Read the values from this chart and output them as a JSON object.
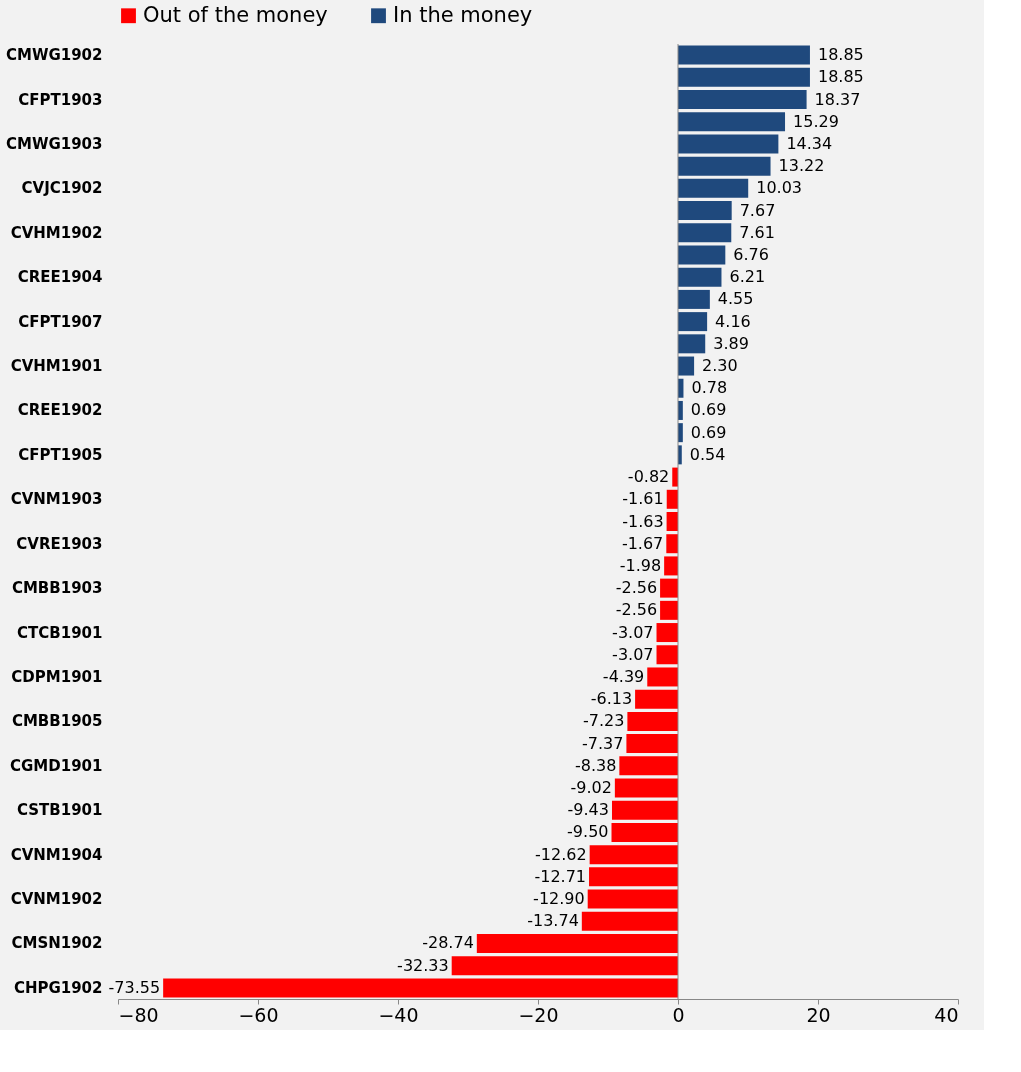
{
  "chart_data": {
    "type": "bar",
    "orientation": "horizontal",
    "categories": [
      "CMWG1902",
      null,
      "CFPT1903",
      null,
      "CMWG1903",
      null,
      "CVJC1902",
      null,
      "CVHM1902",
      null,
      "CREE1904",
      null,
      "CFPT1907",
      null,
      "CVHM1901",
      null,
      "CREE1902",
      null,
      "CFPT1905",
      null,
      "CVNM1903",
      null,
      "CVRE1903",
      null,
      "CMBB1903",
      null,
      "CTCB1901",
      null,
      "CDPM1901",
      null,
      "CMBB1905",
      null,
      "CGMD1901",
      null,
      "CSTB1901",
      null,
      "CVNM1904",
      null,
      "CVNM1902",
      null,
      "CMSN1902",
      null,
      "CHPG1902"
    ],
    "series": [
      {
        "name": "Out of the money",
        "color": "#ff0000",
        "values": [
          null,
          null,
          null,
          null,
          null,
          null,
          null,
          null,
          null,
          null,
          null,
          null,
          null,
          null,
          null,
          null,
          null,
          null,
          null,
          -0.82,
          -1.61,
          -1.63,
          -1.67,
          -1.98,
          -2.56,
          -2.56,
          -3.07,
          -3.07,
          -4.39,
          -6.13,
          -7.23,
          -7.37,
          -8.38,
          -9.02,
          -9.43,
          -9.5,
          -12.62,
          -12.71,
          -12.9,
          -13.74,
          -28.74,
          -32.33,
          -73.55
        ],
        "value_labels": [
          null,
          null,
          null,
          null,
          null,
          null,
          null,
          null,
          null,
          null,
          null,
          null,
          null,
          null,
          null,
          null,
          null,
          null,
          null,
          "-0.82",
          "-1.61",
          "-1.63",
          "-1.67",
          "-1.98",
          "-2.56",
          "-2.56",
          "-3.07",
          "-3.07",
          "-4.39",
          "-6.13",
          "-7.23",
          "-7.37",
          "-8.38",
          "-9.02",
          "-9.43",
          "-9.50",
          "-12.62",
          "-12.71",
          "-12.90",
          "-13.74",
          "-28.74",
          "-32.33",
          "-73.55"
        ]
      },
      {
        "name": "In the money",
        "color": "#1f497d",
        "values": [
          18.85,
          18.85,
          18.37,
          15.29,
          14.34,
          13.22,
          10.03,
          7.67,
          7.61,
          6.76,
          6.21,
          4.55,
          4.16,
          3.89,
          2.3,
          0.78,
          0.69,
          0.69,
          0.54,
          null,
          null,
          null,
          null,
          null,
          null,
          null,
          null,
          null,
          null,
          null,
          null,
          null,
          null,
          null,
          null,
          null,
          null,
          null,
          null,
          null,
          null,
          null,
          null
        ],
        "value_labels": [
          "18.85",
          "18.85",
          "18.37",
          "15.29",
          "14.34",
          "13.22",
          "10.03",
          "7.67",
          "7.61",
          "6.76",
          "6.21",
          "4.55",
          "4.16",
          "3.89",
          "2.30",
          "0.78",
          "0.69",
          "0.69",
          "0.54",
          null,
          null,
          null,
          null,
          null,
          null,
          null,
          null,
          null,
          null,
          null,
          null,
          null,
          null,
          null,
          null,
          null,
          null,
          null,
          null,
          null,
          null,
          null,
          null
        ]
      }
    ],
    "xlim": [
      -80,
      40
    ],
    "xticks": [
      -80,
      -60,
      -40,
      -20,
      0,
      20,
      40
    ],
    "ref_lines": [
      {
        "axis": "x",
        "value": 0,
        "color": "#888888"
      }
    ],
    "legend": "top"
  }
}
